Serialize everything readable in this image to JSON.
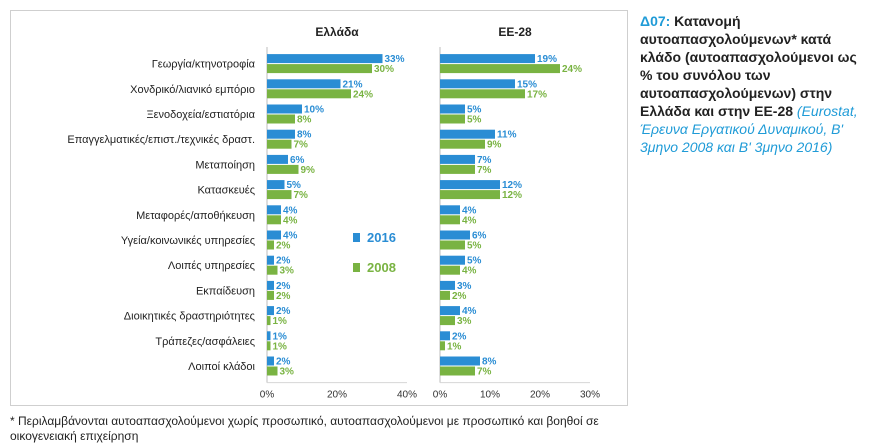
{
  "colors": {
    "s2016": "#2a8dd4",
    "s2008": "#79b342",
    "label2016": "#2a8dd4",
    "label2008": "#79b342"
  },
  "caption": {
    "code": "Δ07:",
    "title": " Κατανομή αυτοαπασχολούμενων* κατά κλάδο (αυτοαπασχολούμενοι ως % του συνόλου των αυτοαπασχολούμενων) στην Ελλάδα και στην ΕΕ-28 ",
    "source": "(Eurostat, Έρευνα Εργατικού Δυναμικού, Β' 3μηνο 2008 και Β' 3μηνο 2016)"
  },
  "footnote": "* Περιλαμβάνονται αυτοαπασχολούμενοι χωρίς προσωπικό, αυτοαπασχολούμενοι με προσωπικό και βοηθοί σε οικογενειακή επιχείρηση",
  "chart_data": {
    "type": "bar",
    "orientation": "horizontal",
    "categories": [
      "Γεωργία/κτηνοτροφία",
      "Χονδρικό/λιανικό εμπόριο",
      "Ξενοδοχεία/εστιατόρια",
      "Επαγγελματικές/επιστ./τεχνικές δραστ.",
      "Μεταποίηση",
      "Κατασκευές",
      "Μεταφορές/αποθήκευση",
      "Υγεία/κοινωνικές υπηρεσίες",
      "Λοιπές υπηρεσίες",
      "Εκπαίδευση",
      "Διοικητικές δραστηριότητες",
      "Τράπεζες/ασφάλειες",
      "Λοιποί κλάδοι"
    ],
    "legend": {
      "placement": "center",
      "items": [
        "2016",
        "2008"
      ]
    },
    "panels": [
      {
        "title": "Ελλάδα",
        "xlim": [
          0,
          40
        ],
        "ticks": [
          "0%",
          "20%",
          "40%"
        ],
        "series": [
          {
            "name": "2016",
            "values": [
              33,
              21,
              10,
              8,
              6,
              5,
              4,
              4,
              2,
              2,
              2,
              1,
              2
            ],
            "labels": [
              "33%",
              "21%",
              "10%",
              "8%",
              "6%",
              "5%",
              "4%",
              "4%",
              "2%",
              "2%",
              "2%",
              "1%",
              "2%"
            ]
          },
          {
            "name": "2008",
            "values": [
              30,
              24,
              8,
              7,
              9,
              7,
              4,
              2,
              3,
              2,
              1,
              1,
              3
            ],
            "labels": [
              "30%",
              "24%",
              "8%",
              "7%",
              "9%",
              "7%",
              "4%",
              "2%",
              "3%",
              "2%",
              "1%",
              "1%",
              "3%"
            ]
          }
        ]
      },
      {
        "title": "ΕΕ-28",
        "xlim": [
          0,
          30
        ],
        "ticks": [
          "0%",
          "10%",
          "20%",
          "30%"
        ],
        "series": [
          {
            "name": "2016",
            "values": [
              19,
              15,
              5,
              11,
              7,
              12,
              4,
              6,
              5,
              3,
              4,
              2,
              8
            ],
            "labels": [
              "19%",
              "15%",
              "5%",
              "11%",
              "7%",
              "12%",
              "4%",
              "6%",
              "5%",
              "3%",
              "4%",
              "2%",
              "8%"
            ]
          },
          {
            "name": "2008",
            "values": [
              24,
              17,
              5,
              9,
              7,
              12,
              4,
              5,
              4,
              2,
              3,
              1,
              7
            ],
            "labels": [
              "24%",
              "17%",
              "5%",
              "9%",
              "7%",
              "12%",
              "4%",
              "5%",
              "4%",
              "2%",
              "3%",
              "1%",
              "7%"
            ]
          }
        ]
      }
    ]
  }
}
